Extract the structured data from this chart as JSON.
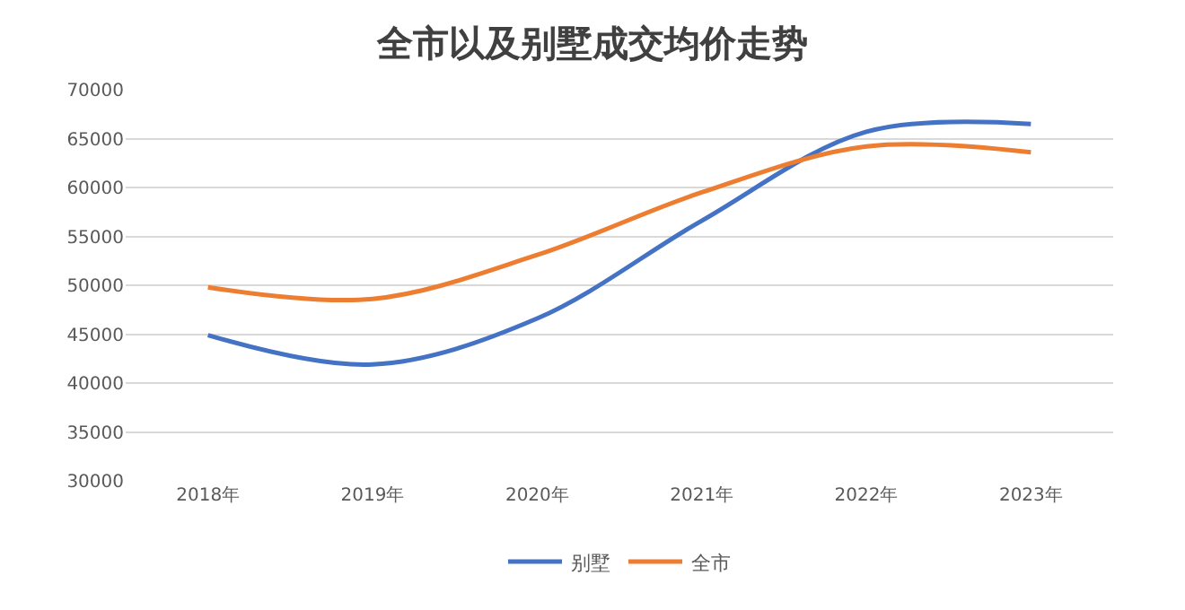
{
  "chart_data": {
    "type": "line",
    "title": "全市以及别墅成交均价走势",
    "categories": [
      "2018年",
      "2019年",
      "2020年",
      "2021年",
      "2022年",
      "2023年"
    ],
    "series": [
      {
        "name": "别墅",
        "color": "#4472c4",
        "values": [
          44900,
          41900,
          46600,
          56600,
          65700,
          66500
        ]
      },
      {
        "name": "全市",
        "color": "#ed7d31",
        "values": [
          49800,
          48600,
          53100,
          59500,
          64200,
          63600
        ]
      }
    ],
    "ylim": [
      30000,
      70000
    ],
    "yticks": [
      30000,
      35000,
      40000,
      45000,
      50000,
      55000,
      60000,
      65000,
      70000
    ],
    "grid": "y",
    "legend": "bottom",
    "marker": "none",
    "line_style": "solid"
  }
}
